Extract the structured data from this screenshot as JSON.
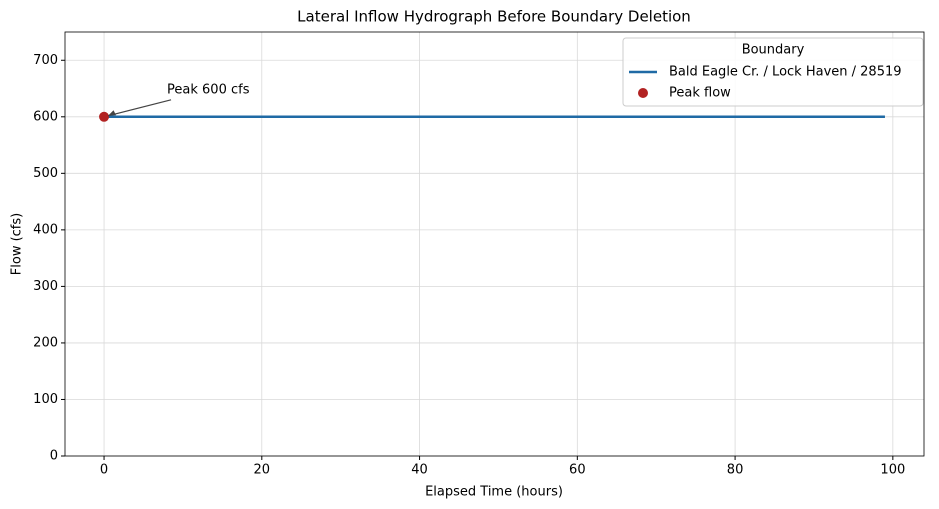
{
  "chart_data": {
    "type": "line",
    "title": "Lateral Inflow Hydrograph Before Boundary Deletion",
    "x_label": "Elapsed Time (hours)",
    "y_label": "Flow (cfs)",
    "xlim": [
      -4.95,
      103.95
    ],
    "xticks": [
      0,
      20,
      40,
      60,
      80,
      100
    ],
    "ylim": [
      0,
      750
    ],
    "yticks": [
      0,
      100,
      200,
      300,
      400,
      500,
      600,
      700
    ],
    "grid": true,
    "legend_title": "Boundary",
    "legend_position": "upper right",
    "series": [
      {
        "name": "Bald Eagle Cr. / Lock Haven / 28519",
        "color": "#1f6aa5",
        "kind": "line",
        "x": [
          0,
          99
        ],
        "values": [
          600,
          600
        ]
      },
      {
        "name": "Peak flow",
        "color": "#b22222",
        "kind": "marker",
        "x": [
          0
        ],
        "values": [
          600
        ]
      }
    ],
    "annotations": [
      {
        "text": "Peak 600 cfs",
        "x": 0,
        "y": 600
      }
    ]
  }
}
